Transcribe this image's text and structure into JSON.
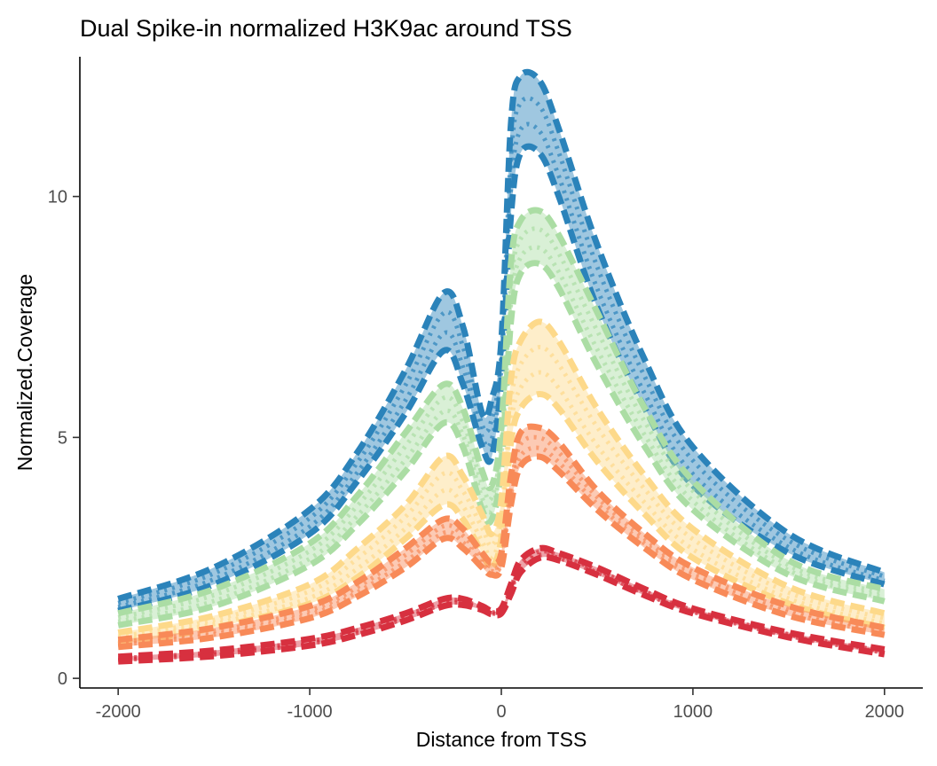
{
  "chart_data": {
    "type": "area",
    "title": "Dual Spike-in normalized H3K9ac around TSS",
    "xlabel": "Distance from TSS",
    "ylabel": "Normalized.Coverage",
    "xlim": [
      -2200,
      2200
    ],
    "ylim": [
      -0.2,
      12.9
    ],
    "x_ticks": [
      -2000,
      -1000,
      0,
      1000,
      2000
    ],
    "x_tick_labels": [
      "-2000",
      "-1000",
      "0",
      "1000",
      "2000"
    ],
    "y_ticks": [
      0,
      5,
      10
    ],
    "y_tick_labels": [
      "0",
      "5",
      "10"
    ],
    "grid": false,
    "legend": "none",
    "x": [
      -2000,
      -1500,
      -1000,
      -750,
      -500,
      -300,
      -200,
      -100,
      -50,
      0,
      50,
      100,
      200,
      300,
      500,
      750,
      1000,
      1500,
      2000
    ],
    "series": [
      {
        "color": "#2b83ba",
        "upper": [
          1.65,
          2.3,
          3.5,
          4.7,
          6.4,
          8.0,
          7.3,
          5.5,
          5.8,
          7.0,
          11.5,
          12.5,
          12.4,
          11.4,
          9.0,
          6.6,
          4.8,
          3.0,
          2.2
        ],
        "lower": [
          1.4,
          1.95,
          3.0,
          4.1,
          5.5,
          6.8,
          6.1,
          4.8,
          4.6,
          6.2,
          9.6,
          10.9,
          10.9,
          10.0,
          7.7,
          5.6,
          4.0,
          2.6,
          1.95
        ]
      },
      {
        "color": "#abdda4",
        "upper": [
          1.35,
          1.85,
          2.8,
          3.8,
          5.1,
          6.1,
          5.6,
          4.3,
          4.0,
          5.2,
          8.6,
          9.5,
          9.7,
          9.2,
          7.6,
          5.6,
          4.1,
          2.45,
          1.85
        ],
        "lower": [
          1.1,
          1.5,
          2.35,
          3.2,
          4.3,
          5.3,
          4.8,
          3.5,
          3.3,
          4.4,
          7.4,
          8.4,
          8.6,
          8.1,
          6.5,
          4.8,
          3.5,
          2.15,
          1.6
        ]
      },
      {
        "color": "#fdd98a",
        "upper": [
          0.95,
          1.3,
          1.95,
          2.7,
          3.6,
          4.6,
          4.2,
          3.4,
          3.0,
          3.7,
          6.2,
          7.0,
          7.4,
          7.0,
          5.6,
          4.2,
          3.1,
          1.9,
          1.35
        ],
        "lower": [
          0.7,
          1.05,
          1.55,
          2.1,
          2.9,
          3.6,
          3.3,
          2.6,
          2.3,
          2.9,
          4.9,
          5.6,
          5.9,
          5.6,
          4.5,
          3.4,
          2.5,
          1.55,
          1.05
        ]
      },
      {
        "color": "#f88a58",
        "upper": [
          0.8,
          1.05,
          1.5,
          2.0,
          2.7,
          3.3,
          3.1,
          2.6,
          2.4,
          2.6,
          4.2,
          5.1,
          5.2,
          4.9,
          3.9,
          3.0,
          2.3,
          1.5,
          1.05
        ],
        "lower": [
          0.65,
          0.85,
          1.25,
          1.7,
          2.3,
          2.9,
          2.7,
          2.3,
          2.15,
          2.3,
          3.6,
          4.4,
          4.6,
          4.3,
          3.5,
          2.7,
          2.05,
          1.3,
          0.9
        ]
      },
      {
        "color": "#d7303f",
        "upper": [
          0.45,
          0.58,
          0.82,
          1.05,
          1.35,
          1.65,
          1.65,
          1.5,
          1.4,
          1.45,
          1.95,
          2.45,
          2.7,
          2.6,
          2.3,
          1.85,
          1.45,
          0.95,
          0.6
        ],
        "lower": [
          0.35,
          0.46,
          0.68,
          0.9,
          1.2,
          1.5,
          1.52,
          1.42,
          1.33,
          1.35,
          1.75,
          2.2,
          2.5,
          2.45,
          2.15,
          1.72,
          1.35,
          0.85,
          0.5
        ]
      }
    ]
  }
}
